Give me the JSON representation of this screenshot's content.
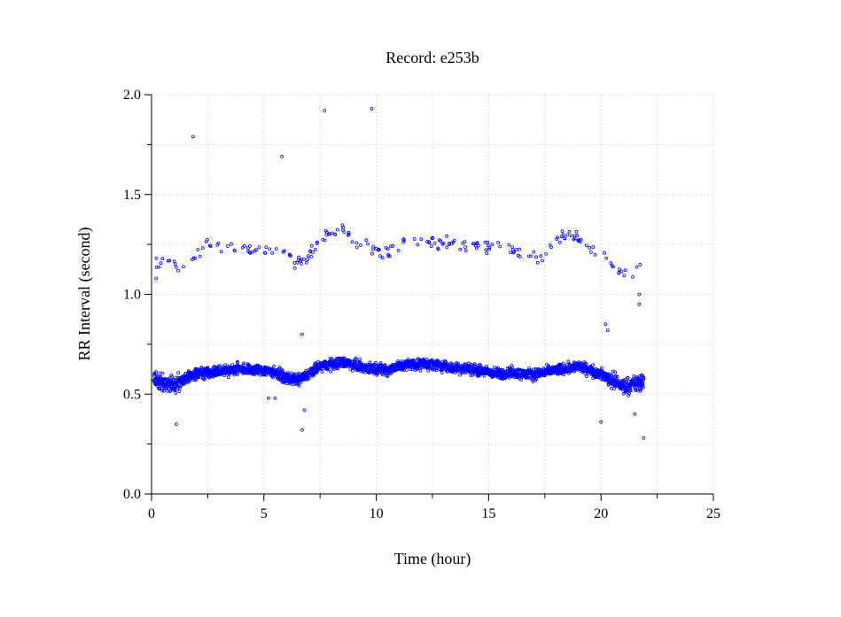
{
  "chart_data": {
    "type": "scatter",
    "title": "Record:  e253b",
    "xlabel": "Time (hour)",
    "ylabel": "RR Interval (second)",
    "xlim": [
      0,
      25
    ],
    "ylim": [
      0,
      2
    ],
    "x_ticks": [
      "0",
      "5",
      "10",
      "15",
      "20",
      "25"
    ],
    "y_ticks": [
      "0.0",
      "0.5",
      "1.0",
      "1.5",
      "2.0"
    ],
    "grid": true,
    "marker_color": "#0000ff",
    "series": [
      {
        "name": "",
        "baseline_trend": [
          [
            0.1,
            0.57
          ],
          [
            0.5,
            0.56
          ],
          [
            1.0,
            0.55
          ],
          [
            1.5,
            0.58
          ],
          [
            2.0,
            0.6
          ],
          [
            2.5,
            0.61
          ],
          [
            3.0,
            0.62
          ],
          [
            3.5,
            0.62
          ],
          [
            4.0,
            0.63
          ],
          [
            4.5,
            0.62
          ],
          [
            5.0,
            0.62
          ],
          [
            5.5,
            0.61
          ],
          [
            6.0,
            0.58
          ],
          [
            6.5,
            0.57
          ],
          [
            7.0,
            0.6
          ],
          [
            7.5,
            0.64
          ],
          [
            8.0,
            0.65
          ],
          [
            8.5,
            0.66
          ],
          [
            9.0,
            0.65
          ],
          [
            9.5,
            0.63
          ],
          [
            10.0,
            0.63
          ],
          [
            10.5,
            0.62
          ],
          [
            11.0,
            0.64
          ],
          [
            11.5,
            0.65
          ],
          [
            12.0,
            0.65
          ],
          [
            12.5,
            0.65
          ],
          [
            13.0,
            0.64
          ],
          [
            13.5,
            0.63
          ],
          [
            14.0,
            0.63
          ],
          [
            14.5,
            0.62
          ],
          [
            15.0,
            0.61
          ],
          [
            15.5,
            0.6
          ],
          [
            16.0,
            0.61
          ],
          [
            16.5,
            0.6
          ],
          [
            17.0,
            0.6
          ],
          [
            17.5,
            0.61
          ],
          [
            18.0,
            0.62
          ],
          [
            18.5,
            0.63
          ],
          [
            19.0,
            0.64
          ],
          [
            19.5,
            0.62
          ],
          [
            20.0,
            0.6
          ],
          [
            20.5,
            0.57
          ],
          [
            21.0,
            0.54
          ],
          [
            21.5,
            0.55
          ],
          [
            21.9,
            0.56
          ]
        ],
        "upper_band_trend": [
          [
            0.2,
            1.17
          ],
          [
            0.8,
            1.16
          ],
          [
            1.2,
            1.13
          ],
          [
            2.0,
            1.2
          ],
          [
            2.5,
            1.25
          ],
          [
            3.0,
            1.23
          ],
          [
            3.5,
            1.24
          ],
          [
            4.0,
            1.23
          ],
          [
            4.5,
            1.23
          ],
          [
            5.0,
            1.22
          ],
          [
            5.5,
            1.22
          ],
          [
            6.0,
            1.2
          ],
          [
            6.5,
            1.15
          ],
          [
            7.0,
            1.2
          ],
          [
            7.5,
            1.28
          ],
          [
            8.0,
            1.31
          ],
          [
            8.5,
            1.33
          ],
          [
            9.0,
            1.26
          ],
          [
            9.5,
            1.25
          ],
          [
            10.0,
            1.22
          ],
          [
            10.5,
            1.2
          ],
          [
            11.0,
            1.25
          ],
          [
            11.5,
            1.3
          ],
          [
            12.0,
            1.27
          ],
          [
            12.5,
            1.27
          ],
          [
            13.0,
            1.25
          ],
          [
            13.5,
            1.25
          ],
          [
            14.0,
            1.24
          ],
          [
            14.5,
            1.25
          ],
          [
            15.0,
            1.24
          ],
          [
            15.5,
            1.25
          ],
          [
            16.0,
            1.23
          ],
          [
            16.5,
            1.21
          ],
          [
            17.0,
            1.19
          ],
          [
            17.5,
            1.17
          ],
          [
            18.0,
            1.28
          ],
          [
            18.5,
            1.3
          ],
          [
            19.0,
            1.28
          ],
          [
            19.5,
            1.22
          ],
          [
            20.0,
            1.2
          ],
          [
            20.5,
            1.15
          ],
          [
            21.0,
            1.1
          ],
          [
            21.5,
            1.12
          ],
          [
            21.9,
            1.18
          ]
        ],
        "outliers": [
          [
            1.85,
            1.79
          ],
          [
            5.8,
            1.69
          ],
          [
            7.7,
            1.92
          ],
          [
            9.8,
            1.93
          ],
          [
            6.7,
            0.32
          ],
          [
            6.7,
            0.8
          ],
          [
            1.1,
            0.35
          ],
          [
            20.0,
            0.36
          ],
          [
            21.9,
            0.28
          ],
          [
            20.2,
            0.85
          ],
          [
            20.3,
            0.82
          ],
          [
            21.7,
            0.95
          ],
          [
            5.2,
            0.48
          ],
          [
            5.5,
            0.48
          ],
          [
            6.8,
            0.42
          ],
          [
            21.5,
            0.4
          ],
          [
            21.7,
            1.0
          ],
          [
            0.2,
            1.08
          ]
        ]
      }
    ]
  }
}
